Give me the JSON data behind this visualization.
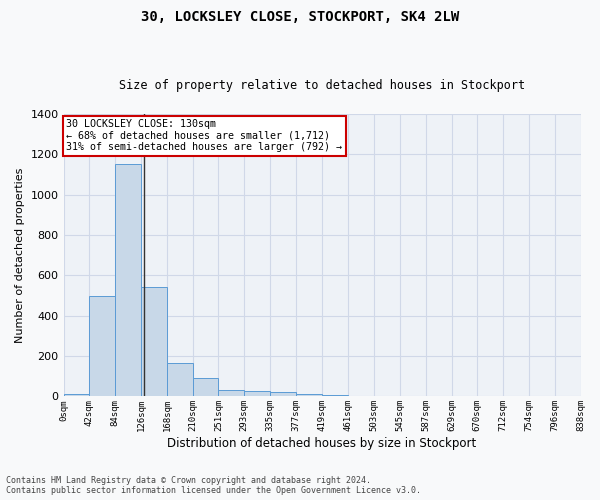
{
  "title_line1": "30, LOCKSLEY CLOSE, STOCKPORT, SK4 2LW",
  "title_line2": "Size of property relative to detached houses in Stockport",
  "xlabel": "Distribution of detached houses by size in Stockport",
  "ylabel": "Number of detached properties",
  "bin_edges": [
    0,
    42,
    84,
    126,
    168,
    210,
    251,
    293,
    335,
    377,
    419,
    461,
    503,
    545,
    587,
    629,
    670,
    712,
    754,
    796,
    838
  ],
  "bar_heights": [
    10,
    500,
    1150,
    540,
    165,
    90,
    30,
    25,
    20,
    10,
    8,
    3,
    0,
    0,
    0,
    0,
    0,
    0,
    0,
    0
  ],
  "bar_color": "#c8d8e8",
  "bar_edgecolor": "#5b9bd5",
  "property_size": 130,
  "annotation_text": "30 LOCKSLEY CLOSE: 130sqm\n← 68% of detached houses are smaller (1,712)\n31% of semi-detached houses are larger (792) →",
  "annotation_box_color": "#ffffff",
  "annotation_box_edgecolor": "#cc0000",
  "vline_color": "#333333",
  "grid_color": "#d0d8e8",
  "background_color": "#eef2f7",
  "fig_background_color": "#f8f9fa",
  "ylim": [
    0,
    1400
  ],
  "yticks": [
    0,
    200,
    400,
    600,
    800,
    1000,
    1200,
    1400
  ],
  "tick_labels": [
    "0sqm",
    "42sqm",
    "84sqm",
    "126sqm",
    "168sqm",
    "210sqm",
    "251sqm",
    "293sqm",
    "335sqm",
    "377sqm",
    "419sqm",
    "461sqm",
    "503sqm",
    "545sqm",
    "587sqm",
    "629sqm",
    "670sqm",
    "712sqm",
    "754sqm",
    "796sqm",
    "838sqm"
  ],
  "footnote": "Contains HM Land Registry data © Crown copyright and database right 2024.\nContains public sector information licensed under the Open Government Licence v3.0."
}
